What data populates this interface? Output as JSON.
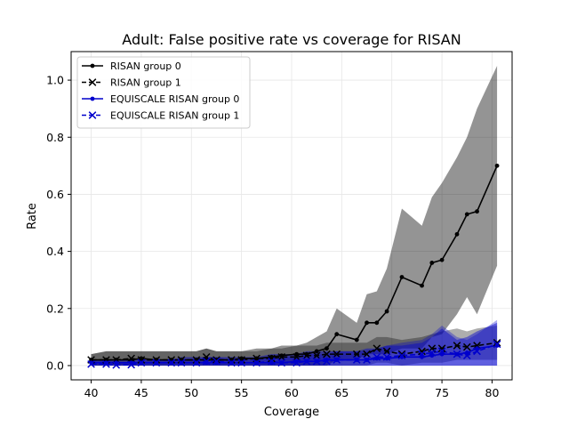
{
  "chart_data": {
    "type": "line",
    "title": "Adult: False positive rate vs coverage for RISAN",
    "xlabel": "Coverage",
    "ylabel": "Rate",
    "xlim": [
      38.0,
      82.0
    ],
    "ylim": [
      -0.05,
      1.1
    ],
    "xticks": [
      "40",
      "45",
      "50",
      "55",
      "60",
      "65",
      "70",
      "75",
      "80"
    ],
    "yticks": [
      "0.0",
      "0.2",
      "0.4",
      "0.6",
      "0.8",
      "1.0"
    ],
    "grid": true,
    "legend_position": "top-left",
    "x": [
      40.0,
      41.5,
      42.5,
      44.0,
      45.0,
      46.5,
      48.0,
      49.0,
      50.5,
      51.5,
      52.5,
      54.0,
      55.0,
      56.5,
      58.0,
      59.0,
      60.5,
      61.5,
      62.5,
      63.5,
      64.5,
      66.5,
      67.5,
      68.5,
      69.5,
      71.0,
      73.0,
      74.0,
      75.0,
      76.5,
      77.5,
      78.5,
      80.5
    ],
    "series": [
      {
        "name": "RISAN group 0",
        "color": "#000000",
        "linestyle": "solid",
        "marker": "dot",
        "values": [
          0.02,
          0.02,
          0.02,
          0.02,
          0.025,
          0.02,
          0.02,
          0.02,
          0.02,
          0.02,
          0.02,
          0.02,
          0.025,
          0.025,
          0.03,
          0.035,
          0.04,
          0.04,
          0.05,
          0.06,
          0.11,
          0.09,
          0.15,
          0.15,
          0.19,
          0.31,
          0.28,
          0.36,
          0.37,
          0.46,
          0.53,
          0.54,
          0.7
        ],
        "band_lower": [
          0.0,
          0.0,
          0.0,
          0.0,
          0.0,
          0.0,
          0.0,
          0.0,
          0.0,
          0.0,
          0.0,
          0.0,
          0.0,
          0.0,
          0.0,
          0.0,
          0.0,
          0.0,
          0.0,
          0.0,
          0.02,
          0.02,
          0.04,
          0.04,
          0.04,
          0.06,
          0.06,
          0.1,
          0.11,
          0.18,
          0.24,
          0.18,
          0.35
        ],
        "band_upper": [
          0.04,
          0.05,
          0.05,
          0.05,
          0.05,
          0.05,
          0.05,
          0.05,
          0.05,
          0.06,
          0.05,
          0.05,
          0.05,
          0.06,
          0.06,
          0.07,
          0.07,
          0.08,
          0.1,
          0.12,
          0.2,
          0.15,
          0.25,
          0.26,
          0.34,
          0.55,
          0.49,
          0.59,
          0.64,
          0.73,
          0.8,
          0.9,
          1.05
        ]
      },
      {
        "name": "RISAN group 1",
        "color": "#000000",
        "linestyle": "dashed",
        "marker": "x",
        "values": [
          0.02,
          0.02,
          0.02,
          0.025,
          0.02,
          0.02,
          0.02,
          0.02,
          0.02,
          0.03,
          0.02,
          0.02,
          0.02,
          0.025,
          0.025,
          0.03,
          0.03,
          0.035,
          0.035,
          0.04,
          0.04,
          0.04,
          0.04,
          0.06,
          0.05,
          0.04,
          0.05,
          0.06,
          0.06,
          0.07,
          0.065,
          0.07,
          0.08
        ],
        "band_lower": [
          0.0,
          0.0,
          0.0,
          0.0,
          0.0,
          0.0,
          0.0,
          0.0,
          0.0,
          0.0,
          0.0,
          0.0,
          0.0,
          0.0,
          0.0,
          0.0,
          0.0,
          0.0,
          0.0,
          0.0,
          0.0,
          0.0,
          0.0,
          0.01,
          0.01,
          0.0,
          0.01,
          0.01,
          0.01,
          0.02,
          0.02,
          0.02,
          0.02
        ],
        "band_upper": [
          0.04,
          0.05,
          0.05,
          0.05,
          0.05,
          0.05,
          0.05,
          0.05,
          0.05,
          0.06,
          0.05,
          0.05,
          0.05,
          0.05,
          0.06,
          0.06,
          0.07,
          0.07,
          0.07,
          0.08,
          0.08,
          0.08,
          0.08,
          0.1,
          0.1,
          0.09,
          0.1,
          0.11,
          0.12,
          0.13,
          0.12,
          0.13,
          0.14
        ]
      },
      {
        "name": "EQUISCALE RISAN group 0",
        "color": "#0000cc",
        "linestyle": "solid",
        "marker": "dot",
        "values": [
          0.01,
          0.01,
          0.01,
          0.01,
          0.01,
          0.01,
          0.01,
          0.01,
          0.01,
          0.01,
          0.01,
          0.01,
          0.01,
          0.01,
          0.01,
          0.01,
          0.015,
          0.015,
          0.015,
          0.02,
          0.02,
          0.02,
          0.02,
          0.025,
          0.025,
          0.03,
          0.03,
          0.035,
          0.04,
          0.04,
          0.045,
          0.06,
          0.07
        ],
        "band_lower": [
          0.0,
          0.0,
          0.0,
          0.0,
          0.0,
          0.0,
          0.0,
          0.0,
          0.0,
          0.0,
          0.0,
          0.0,
          0.0,
          0.0,
          0.0,
          0.0,
          0.0,
          0.0,
          0.0,
          0.0,
          0.0,
          0.0,
          0.0,
          0.0,
          0.0,
          0.0,
          0.0,
          0.0,
          0.0,
          0.0,
          0.0,
          0.0,
          0.0
        ],
        "band_upper": [
          0.02,
          0.02,
          0.02,
          0.02,
          0.02,
          0.02,
          0.02,
          0.03,
          0.03,
          0.03,
          0.03,
          0.03,
          0.03,
          0.03,
          0.04,
          0.04,
          0.04,
          0.05,
          0.05,
          0.05,
          0.05,
          0.05,
          0.06,
          0.06,
          0.07,
          0.07,
          0.08,
          0.1,
          0.13,
          0.09,
          0.1,
          0.12,
          0.15
        ]
      },
      {
        "name": "EQUISCALE RISAN group 1",
        "color": "#0000cc",
        "linestyle": "dashed",
        "marker": "x",
        "values": [
          0.005,
          0.005,
          0.002,
          0.003,
          0.01,
          0.01,
          0.01,
          0.01,
          0.01,
          0.015,
          0.015,
          0.01,
          0.01,
          0.01,
          0.015,
          0.01,
          0.01,
          0.015,
          0.015,
          0.015,
          0.02,
          0.02,
          0.02,
          0.03,
          0.03,
          0.035,
          0.04,
          0.045,
          0.05,
          0.04,
          0.035,
          0.05,
          0.075
        ],
        "band_lower": [
          0.0,
          0.0,
          0.0,
          0.0,
          0.0,
          0.0,
          0.0,
          0.0,
          0.0,
          0.0,
          0.0,
          0.0,
          0.0,
          0.0,
          0.0,
          0.0,
          0.0,
          0.0,
          0.0,
          0.0,
          0.0,
          0.0,
          0.0,
          0.0,
          0.0,
          0.0,
          0.0,
          0.0,
          0.0,
          0.0,
          0.0,
          0.0,
          0.0
        ],
        "band_upper": [
          0.02,
          0.02,
          0.01,
          0.01,
          0.02,
          0.02,
          0.02,
          0.02,
          0.02,
          0.03,
          0.03,
          0.02,
          0.02,
          0.02,
          0.03,
          0.03,
          0.03,
          0.04,
          0.04,
          0.04,
          0.05,
          0.05,
          0.05,
          0.06,
          0.07,
          0.08,
          0.09,
          0.11,
          0.14,
          0.1,
          0.09,
          0.11,
          0.16
        ]
      }
    ]
  }
}
